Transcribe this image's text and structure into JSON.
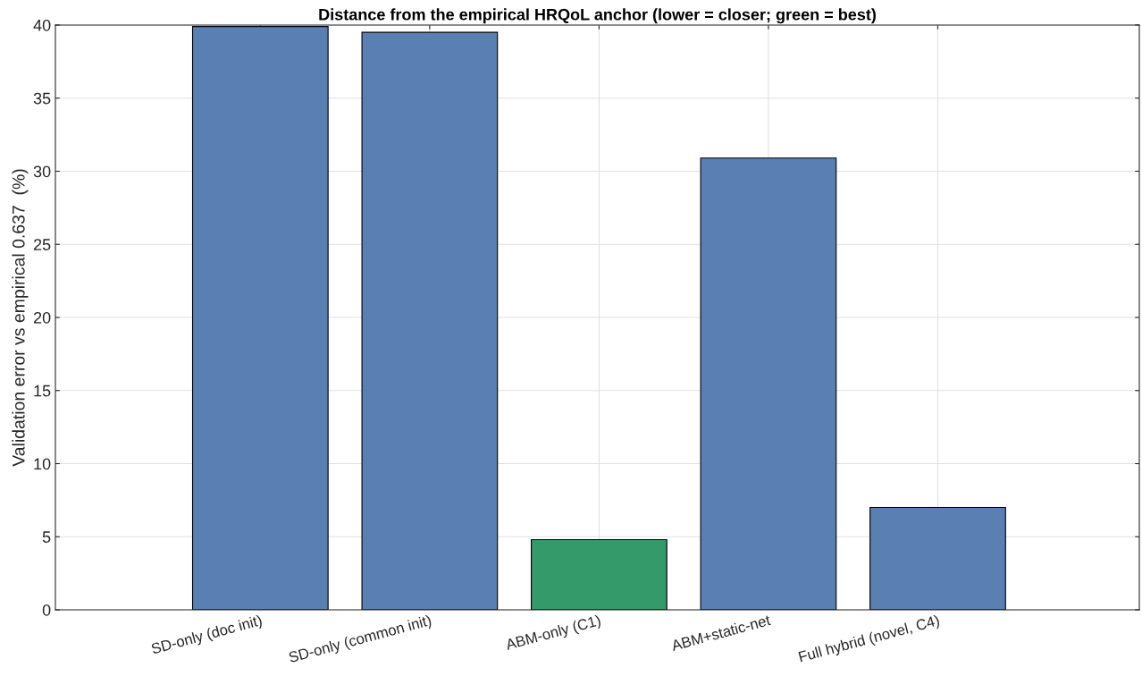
{
  "chart_data": {
    "type": "bar",
    "title": "Distance from the empirical HRQoL anchor (lower = closer; green = best)",
    "ylabel": "Validation error vs empirical 0.637  (%)",
    "categories": [
      "SD-only (doc init)",
      "SD-only (common init)",
      "ABM-only (C1)",
      "ABM+static-net",
      "Full hybrid (novel, C4)"
    ],
    "values": [
      39.9,
      39.5,
      4.8,
      30.9,
      7.0
    ],
    "colors": [
      "#5a7fb2",
      "#5a7fb2",
      "#359a69",
      "#5a7fb2",
      "#5a7fb2"
    ],
    "ylim": [
      0,
      40
    ],
    "yticks": [
      0,
      5,
      10,
      15,
      20,
      25,
      30,
      35,
      40
    ],
    "grid": true
  }
}
